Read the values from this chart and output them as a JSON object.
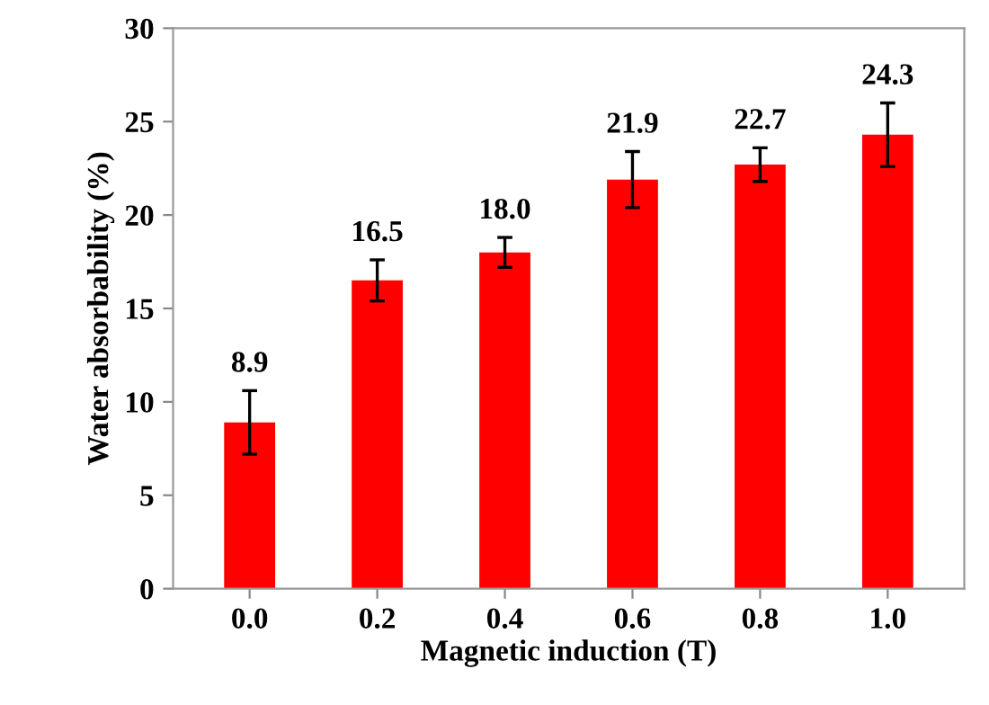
{
  "chart_data": {
    "type": "bar",
    "xlabel": "Magnetic induction (T)",
    "ylabel": "Water absorbability (%)",
    "categories": [
      "0.0",
      "0.2",
      "0.4",
      "0.6",
      "0.8",
      "1.0"
    ],
    "values": [
      8.9,
      16.5,
      18.0,
      21.9,
      22.7,
      24.3
    ],
    "errors": [
      1.7,
      1.1,
      0.8,
      1.5,
      0.9,
      1.7
    ],
    "color": "#ff0000",
    "ylim": [
      0,
      30
    ],
    "yticks": [
      0,
      5,
      10,
      15,
      20,
      25,
      30
    ],
    "grid": false,
    "value_labels": [
      "8.9",
      "16.5",
      "18.0",
      "21.9",
      "22.7",
      "24.3"
    ]
  }
}
